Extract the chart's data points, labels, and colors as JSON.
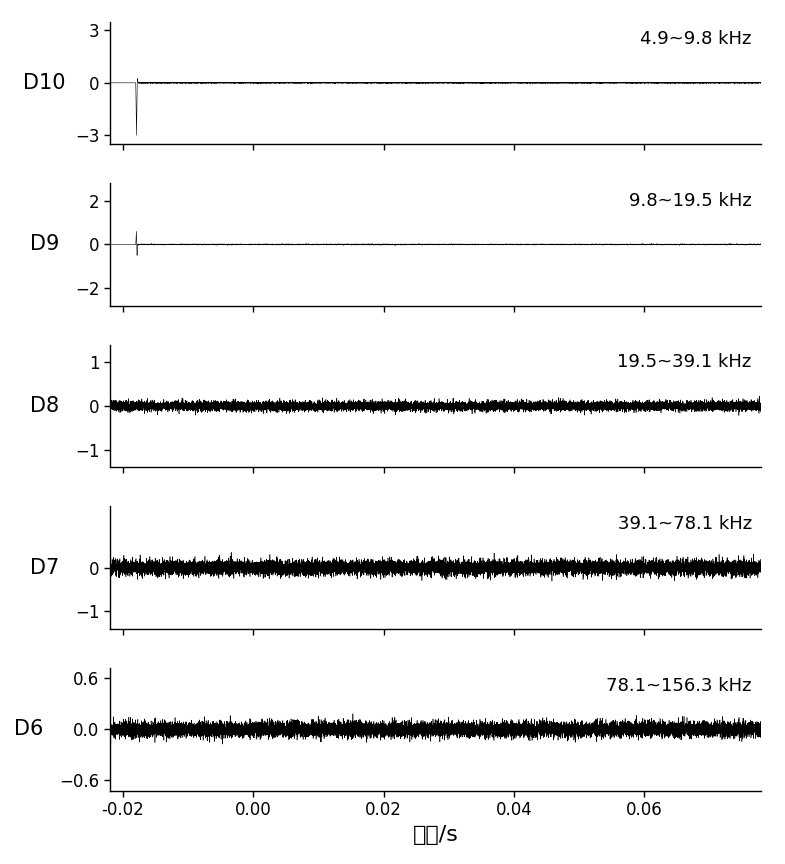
{
  "subplots": [
    {
      "label": "D10",
      "freq_label": "4.9~9.8 kHz",
      "ylim": [
        -3.5,
        3.5
      ],
      "yticks": [
        -3,
        0,
        3
      ],
      "noise_std": 0.012
    },
    {
      "label": "D9",
      "freq_label": "9.8~19.5 kHz",
      "ylim": [
        -2.8,
        2.8
      ],
      "yticks": [
        -2,
        0,
        2
      ],
      "noise_std": 0.012
    },
    {
      "label": "D8",
      "freq_label": "19.5~39.1 kHz",
      "ylim": [
        -1.4,
        1.4
      ],
      "yticks": [
        -1,
        0,
        1
      ],
      "noise_std": 0.055
    },
    {
      "label": "D7",
      "freq_label": "39.1~78.1 kHz",
      "ylim": [
        -1.4,
        1.4
      ],
      "yticks": [
        -1,
        0
      ],
      "noise_std": 0.085
    },
    {
      "label": "D6",
      "freq_label": "78.1~156.3 kHz",
      "ylim": [
        -0.72,
        0.72
      ],
      "yticks": [
        -0.6,
        0.0,
        0.6
      ],
      "noise_std": 0.045
    }
  ],
  "xmin": -0.022,
  "xmax": 0.078,
  "xticks": [
    -0.02,
    0.0,
    0.02,
    0.04,
    0.06
  ],
  "xticklabels": [
    "-0.02",
    "0.00",
    "0.02",
    "0.04",
    "0.06"
  ],
  "xlabel": "时间/s",
  "background_color": "#ffffff",
  "line_color": "#000000",
  "spine_color": "#000000",
  "tick_color": "#000000",
  "label_fontsize": 15,
  "tick_fontsize": 12,
  "freq_label_fontsize": 13,
  "N": 15000
}
